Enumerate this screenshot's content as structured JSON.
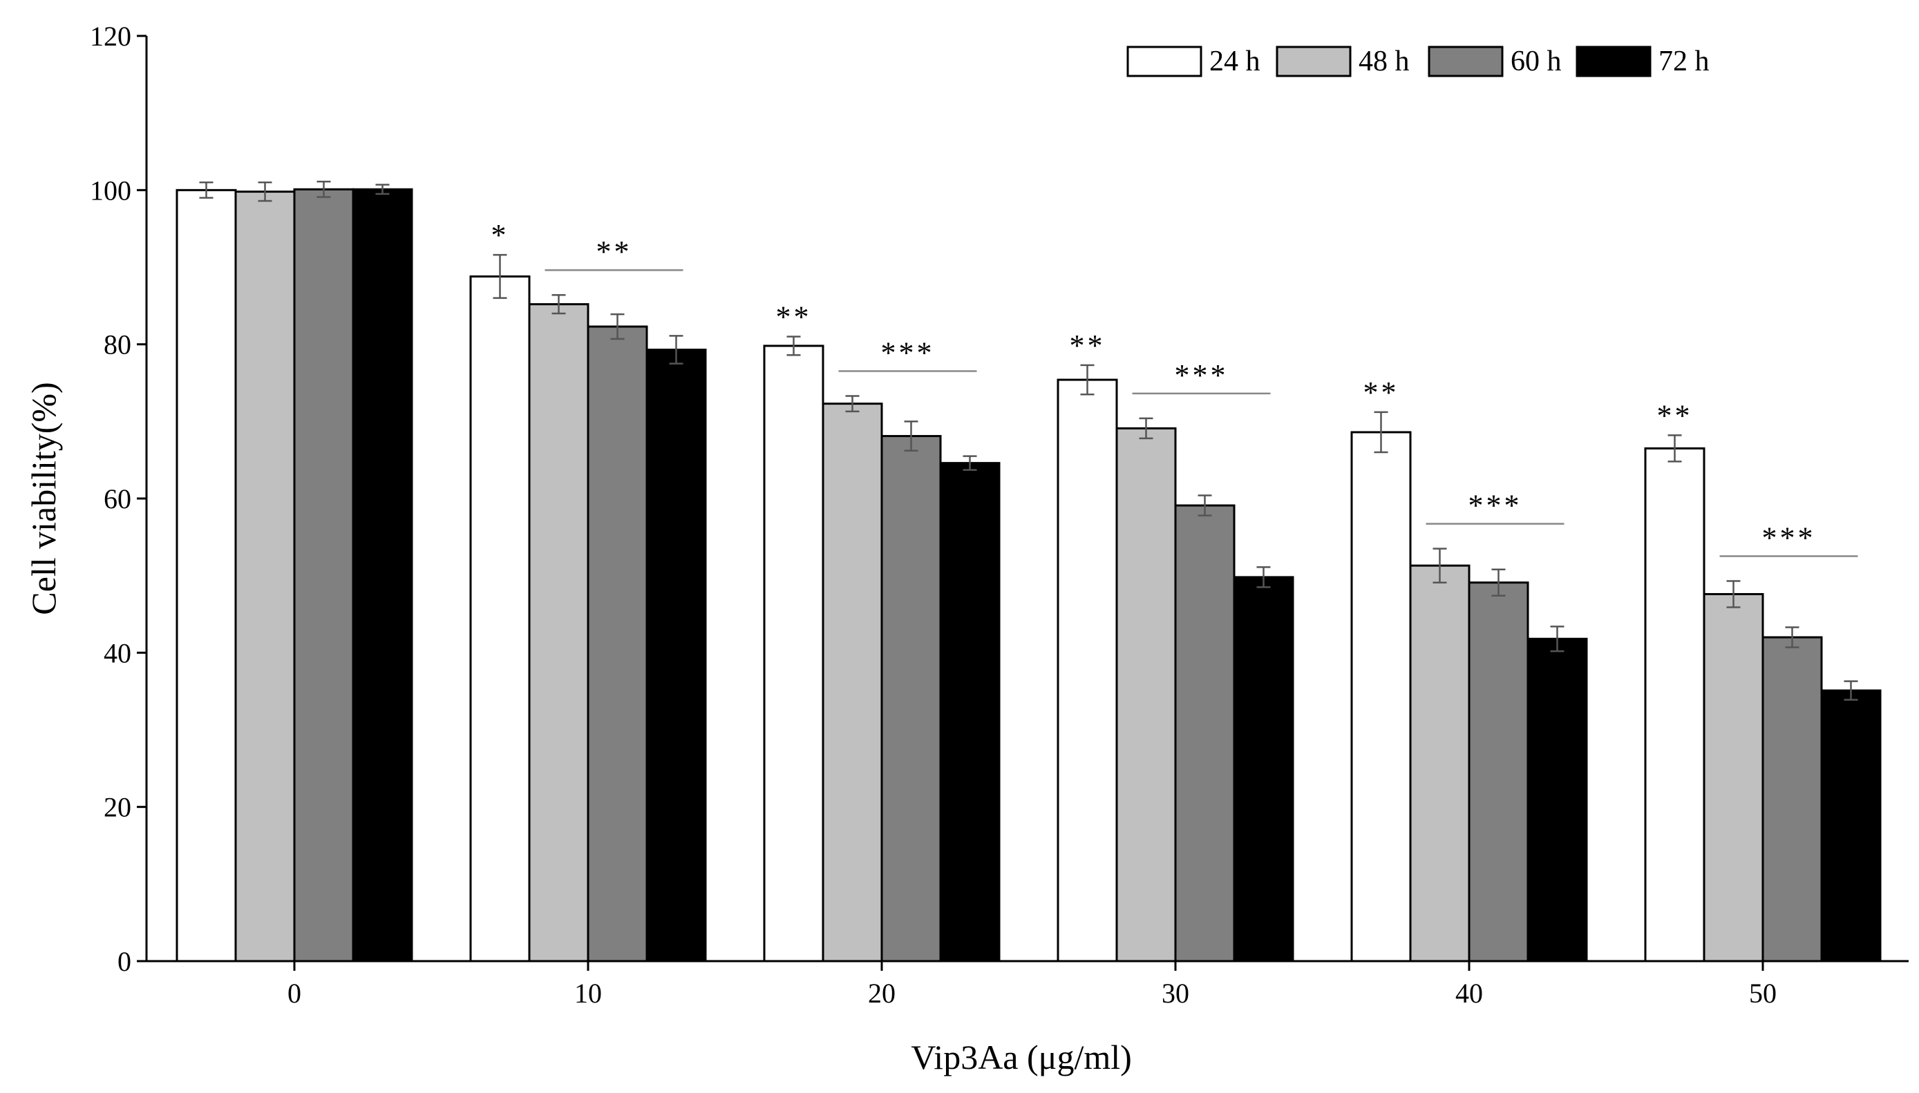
{
  "chart_data": {
    "type": "bar",
    "xlabel": "Vip3Aa (μg/ml)",
    "ylabel": "Cell viability(%)",
    "ylim": [
      0,
      120
    ],
    "yticks": [
      0,
      20,
      40,
      60,
      80,
      100,
      120
    ],
    "categories": [
      "0",
      "10",
      "20",
      "30",
      "40",
      "50"
    ],
    "legend_position": "top-right",
    "series": [
      {
        "name": "24 h",
        "color": "#ffffff",
        "values": [
          100,
          88.8,
          79.8,
          75.4,
          68.6,
          66.5
        ],
        "errors": [
          1.0,
          2.8,
          1.2,
          1.9,
          2.6,
          1.7
        ]
      },
      {
        "name": "48 h",
        "color": "#c0c0c0",
        "values": [
          99.8,
          85.2,
          72.3,
          69.1,
          51.3,
          47.6
        ],
        "errors": [
          1.2,
          1.2,
          1.0,
          1.3,
          2.2,
          1.7
        ]
      },
      {
        "name": "60 h",
        "color": "#808080",
        "values": [
          100.1,
          82.3,
          68.1,
          59.1,
          49.1,
          42.0
        ],
        "errors": [
          1.0,
          1.6,
          1.9,
          1.3,
          1.7,
          1.3
        ]
      },
      {
        "name": "72 h",
        "color": "#000000",
        "values": [
          100.1,
          79.3,
          64.6,
          49.8,
          41.8,
          35.1
        ],
        "errors": [
          0.6,
          1.8,
          0.9,
          1.3,
          1.6,
          1.2
        ]
      }
    ],
    "annotations": [
      {
        "category": "10",
        "series": "24 h",
        "label": "*"
      },
      {
        "category": "10",
        "series_span": [
          "48 h",
          "72 h"
        ],
        "label": "**"
      },
      {
        "category": "20",
        "series": "24 h",
        "label": "**"
      },
      {
        "category": "20",
        "series_span": [
          "48 h",
          "72 h"
        ],
        "label": "***"
      },
      {
        "category": "30",
        "series": "24 h",
        "label": "**"
      },
      {
        "category": "30",
        "series_span": [
          "48 h",
          "72 h"
        ],
        "label": "***"
      },
      {
        "category": "40",
        "series": "24 h",
        "label": "**"
      },
      {
        "category": "40",
        "series_span": [
          "48 h",
          "72 h"
        ],
        "label": "***"
      },
      {
        "category": "50",
        "series": "24 h",
        "label": "**"
      },
      {
        "category": "50",
        "series_span": [
          "48 h",
          "72 h"
        ],
        "label": "***"
      }
    ]
  }
}
